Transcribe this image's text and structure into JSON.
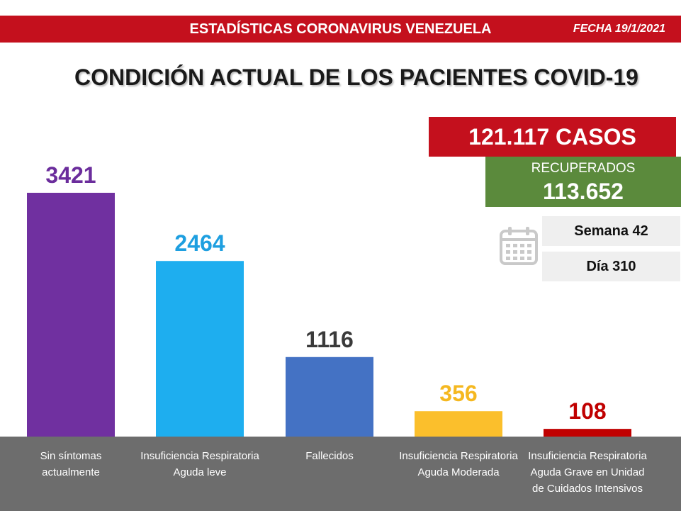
{
  "header": {
    "title": "ESTADÍSTICAS CORONAVIRUS VENEZUELA",
    "date": "FECHA 19/1/2021"
  },
  "page_title": "CONDICIÓN ACTUAL DE LOS PACIENTES COVID-19",
  "summary": {
    "cases": "121.117 CASOS",
    "recovered_label": "RECUPERADOS",
    "recovered_value": "113.652",
    "week": "Semana 42",
    "day": "Día 310"
  },
  "icons": {
    "calendar": "calendar-icon"
  },
  "colors": {
    "brand_red": "#c4101d",
    "recovered_green": "#5b8a3c",
    "category_band": "#6d6d6d"
  },
  "chart_data": {
    "type": "bar",
    "categories": [
      "Sin síntomas actualmente",
      "Insuficiencia Respiratoria Aguda leve",
      "Fallecidos",
      "Insuficiencia Respiratoria Aguda Moderada",
      "Insuficiencia Respiratoria Aguda Grave en Unidad de Cuidados Intensivos"
    ],
    "values": [
      3421,
      2464,
      1116,
      356,
      108
    ],
    "value_labels": [
      "3421",
      "2464",
      "1116",
      "356",
      "108"
    ],
    "colors": [
      "#7030a0",
      "#1eaeef",
      "#4472c4",
      "#fbbf2c",
      "#c00000"
    ],
    "label_colors": [
      "#6b2d9c",
      "#1e9fe0",
      "#3a3a3a",
      "#f5b820",
      "#c00000"
    ],
    "ylim": [
      0,
      3421
    ],
    "grid": false,
    "legend": "none"
  }
}
